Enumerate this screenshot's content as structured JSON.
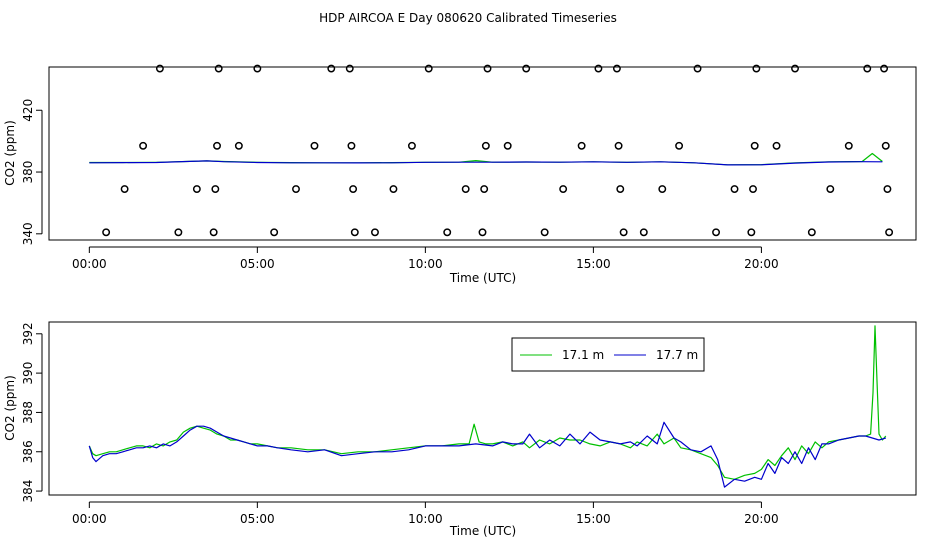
{
  "title": "HDP AIRCOA E  Day 080620  Calibrated Timeseries",
  "colors": {
    "series_17_1": "#00c000",
    "series_17_7": "#0000cc",
    "axis": "#000000",
    "background": "#ffffff"
  },
  "chart_data": [
    {
      "type": "scatter+line",
      "name": "top-panel",
      "xlabel": "Time (UTC)",
      "ylabel": "CO2 (ppm)",
      "xlim": [
        -1.2,
        24.6
      ],
      "ylim": [
        336,
        448
      ],
      "x_ticks": [
        {
          "v": 0,
          "label": "00:00"
        },
        {
          "v": 5,
          "label": "05:00"
        },
        {
          "v": 10,
          "label": "10:00"
        },
        {
          "v": 15,
          "label": "15:00"
        },
        {
          "v": 20,
          "label": "20:00"
        }
      ],
      "y_ticks": [
        {
          "v": 340,
          "label": "340"
        },
        {
          "v": 380,
          "label": "380"
        },
        {
          "v": 420,
          "label": "420"
        }
      ],
      "calibration_points": [
        {
          "x": 0.5,
          "y": 341
        },
        {
          "x": 1.05,
          "y": 369
        },
        {
          "x": 1.6,
          "y": 397
        },
        {
          "x": 2.1,
          "y": 447
        },
        {
          "x": 2.65,
          "y": 341
        },
        {
          "x": 3.2,
          "y": 369
        },
        {
          "x": 3.7,
          "y": 341
        },
        {
          "x": 3.75,
          "y": 369
        },
        {
          "x": 3.8,
          "y": 397
        },
        {
          "x": 3.85,
          "y": 447
        },
        {
          "x": 4.45,
          "y": 397
        },
        {
          "x": 5.0,
          "y": 447
        },
        {
          "x": 5.5,
          "y": 341
        },
        {
          "x": 6.15,
          "y": 369
        },
        {
          "x": 6.7,
          "y": 397
        },
        {
          "x": 7.2,
          "y": 447
        },
        {
          "x": 7.75,
          "y": 447
        },
        {
          "x": 7.8,
          "y": 397
        },
        {
          "x": 7.85,
          "y": 369
        },
        {
          "x": 7.9,
          "y": 341
        },
        {
          "x": 8.5,
          "y": 341
        },
        {
          "x": 9.05,
          "y": 369
        },
        {
          "x": 9.6,
          "y": 397
        },
        {
          "x": 10.1,
          "y": 447
        },
        {
          "x": 10.65,
          "y": 341
        },
        {
          "x": 11.2,
          "y": 369
        },
        {
          "x": 11.7,
          "y": 341
        },
        {
          "x": 11.75,
          "y": 369
        },
        {
          "x": 11.8,
          "y": 397
        },
        {
          "x": 11.85,
          "y": 447
        },
        {
          "x": 12.45,
          "y": 397
        },
        {
          "x": 13.0,
          "y": 447
        },
        {
          "x": 13.55,
          "y": 341
        },
        {
          "x": 14.1,
          "y": 369
        },
        {
          "x": 14.65,
          "y": 397
        },
        {
          "x": 15.15,
          "y": 447
        },
        {
          "x": 15.7,
          "y": 447
        },
        {
          "x": 15.75,
          "y": 397
        },
        {
          "x": 15.8,
          "y": 369
        },
        {
          "x": 15.9,
          "y": 341
        },
        {
          "x": 16.5,
          "y": 341
        },
        {
          "x": 17.05,
          "y": 369
        },
        {
          "x": 17.55,
          "y": 397
        },
        {
          "x": 18.1,
          "y": 447
        },
        {
          "x": 18.65,
          "y": 341
        },
        {
          "x": 19.2,
          "y": 369
        },
        {
          "x": 19.7,
          "y": 341
        },
        {
          "x": 19.75,
          "y": 369
        },
        {
          "x": 19.8,
          "y": 397
        },
        {
          "x": 19.85,
          "y": 447
        },
        {
          "x": 20.45,
          "y": 397
        },
        {
          "x": 21.0,
          "y": 447
        },
        {
          "x": 21.5,
          "y": 341
        },
        {
          "x": 22.05,
          "y": 369
        },
        {
          "x": 22.6,
          "y": 397
        },
        {
          "x": 23.15,
          "y": 447
        },
        {
          "x": 23.65,
          "y": 447
        },
        {
          "x": 23.7,
          "y": 397
        },
        {
          "x": 23.75,
          "y": 369
        },
        {
          "x": 23.8,
          "y": 341
        }
      ],
      "series": [
        {
          "name": "17.1 m",
          "color": "#00c000",
          "x": [
            0,
            1,
            2,
            3,
            3.5,
            4,
            5,
            6,
            7,
            8,
            9,
            10,
            11,
            11.5,
            12,
            13,
            14,
            15,
            16,
            17,
            18,
            19,
            20,
            21,
            22,
            23,
            23.3,
            23.6
          ],
          "y": [
            386.2,
            386.2,
            386.3,
            386.9,
            387.2,
            386.8,
            386.3,
            386.1,
            386.0,
            386.0,
            386.1,
            386.3,
            386.4,
            387.4,
            386.4,
            386.5,
            386.4,
            386.6,
            386.3,
            386.6,
            386.0,
            384.7,
            384.8,
            386.0,
            386.6,
            386.8,
            392,
            386.8
          ]
        },
        {
          "name": "17.7 m",
          "color": "#0000cc",
          "x": [
            0,
            1,
            2,
            3,
            3.5,
            4,
            5,
            6,
            7,
            8,
            9,
            10,
            11,
            12,
            13,
            14,
            15,
            16,
            17,
            18,
            19,
            20,
            21,
            22,
            23,
            23.6
          ],
          "y": [
            386.0,
            386.1,
            386.2,
            386.9,
            387.2,
            386.7,
            386.2,
            386.0,
            386.0,
            385.9,
            386.0,
            386.3,
            386.4,
            386.4,
            386.5,
            386.4,
            386.6,
            386.3,
            386.6,
            386.0,
            384.6,
            384.7,
            385.8,
            386.5,
            386.7,
            386.6
          ]
        }
      ]
    },
    {
      "type": "line",
      "name": "bottom-panel",
      "xlabel": "Time (UTC)",
      "ylabel": "CO2 (ppm)",
      "xlim": [
        -1.2,
        24.6
      ],
      "ylim": [
        383.8,
        392.6
      ],
      "x_ticks": [
        {
          "v": 0,
          "label": "00:00"
        },
        {
          "v": 5,
          "label": "05:00"
        },
        {
          "v": 10,
          "label": "10:00"
        },
        {
          "v": 15,
          "label": "15:00"
        },
        {
          "v": 20,
          "label": "20:00"
        }
      ],
      "y_ticks": [
        {
          "v": 384,
          "label": "384"
        },
        {
          "v": 386,
          "label": "386"
        },
        {
          "v": 388,
          "label": "388"
        },
        {
          "v": 390,
          "label": "390"
        },
        {
          "v": 392,
          "label": "392"
        }
      ],
      "legend": {
        "position": "top-right",
        "entries": [
          {
            "label": "17.1 m",
            "color": "#00c000"
          },
          {
            "label": "17.7 m",
            "color": "#0000cc"
          }
        ]
      },
      "series": [
        {
          "name": "17.1 m",
          "color": "#00c000",
          "x": [
            0,
            0.1,
            0.2,
            0.4,
            0.6,
            0.8,
            1.0,
            1.2,
            1.4,
            1.6,
            1.8,
            2.0,
            2.2,
            2.4,
            2.6,
            2.8,
            3.0,
            3.2,
            3.4,
            3.6,
            3.8,
            4.0,
            4.2,
            4.4,
            4.6,
            4.8,
            5.0,
            5.3,
            5.6,
            6.0,
            6.5,
            7.0,
            7.5,
            8.0,
            8.5,
            9.0,
            9.5,
            10.0,
            10.5,
            11.0,
            11.3,
            11.45,
            11.6,
            11.8,
            12.0,
            12.3,
            12.6,
            12.9,
            13.1,
            13.4,
            13.7,
            14.0,
            14.3,
            14.6,
            14.9,
            15.2,
            15.5,
            15.8,
            16.1,
            16.3,
            16.6,
            16.9,
            17.1,
            17.4,
            17.6,
            17.9,
            18.2,
            18.5,
            18.7,
            18.9,
            19.2,
            19.5,
            19.8,
            20.0,
            20.2,
            20.4,
            20.6,
            20.8,
            21.0,
            21.2,
            21.4,
            21.6,
            21.8,
            22.0,
            22.3,
            22.6,
            22.9,
            23.1,
            23.25,
            23.32,
            23.38,
            23.44,
            23.5,
            23.6,
            23.7
          ],
          "y": [
            386.3,
            385.9,
            385.8,
            385.9,
            386.0,
            386.0,
            386.1,
            386.2,
            386.3,
            386.3,
            386.2,
            386.4,
            386.3,
            386.5,
            386.6,
            387.0,
            387.2,
            387.3,
            387.2,
            387.1,
            386.9,
            386.8,
            386.6,
            386.6,
            386.5,
            386.4,
            386.4,
            386.3,
            386.2,
            386.2,
            386.1,
            386.1,
            385.9,
            386.0,
            386.0,
            386.1,
            386.2,
            386.3,
            386.3,
            386.4,
            386.4,
            387.4,
            386.5,
            386.4,
            386.4,
            386.5,
            386.3,
            386.5,
            386.2,
            386.6,
            386.4,
            386.7,
            386.6,
            386.6,
            386.4,
            386.3,
            386.5,
            386.4,
            386.2,
            386.5,
            386.3,
            386.9,
            386.4,
            386.7,
            386.2,
            386.1,
            385.9,
            385.7,
            385.3,
            384.7,
            384.6,
            384.8,
            384.9,
            385.1,
            385.6,
            385.3,
            385.8,
            386.2,
            385.6,
            386.3,
            385.9,
            386.5,
            386.2,
            386.5,
            386.6,
            386.7,
            386.8,
            386.8,
            386.9,
            389.0,
            392.4,
            389.6,
            386.9,
            386.6,
            386.8
          ]
        },
        {
          "name": "17.7 m",
          "color": "#0000cc",
          "x": [
            0,
            0.1,
            0.2,
            0.4,
            0.6,
            0.8,
            1.0,
            1.2,
            1.4,
            1.6,
            1.8,
            2.0,
            2.2,
            2.4,
            2.6,
            2.8,
            3.0,
            3.2,
            3.4,
            3.6,
            3.8,
            4.0,
            4.2,
            4.4,
            4.6,
            4.8,
            5.0,
            5.3,
            5.6,
            6.0,
            6.5,
            7.0,
            7.5,
            8.0,
            8.5,
            9.0,
            9.5,
            10.0,
            10.5,
            11.0,
            11.5,
            12.0,
            12.3,
            12.6,
            12.9,
            13.1,
            13.4,
            13.7,
            14.0,
            14.3,
            14.6,
            14.9,
            15.2,
            15.5,
            15.8,
            16.1,
            16.3,
            16.6,
            16.9,
            17.1,
            17.4,
            17.6,
            17.9,
            18.2,
            18.5,
            18.7,
            18.9,
            19.2,
            19.5,
            19.8,
            20.0,
            20.2,
            20.4,
            20.6,
            20.8,
            21.0,
            21.2,
            21.4,
            21.6,
            21.8,
            22.0,
            22.3,
            22.6,
            22.9,
            23.1,
            23.3,
            23.5,
            23.7
          ],
          "y": [
            386.3,
            385.7,
            385.5,
            385.8,
            385.9,
            385.9,
            386.0,
            386.1,
            386.2,
            386.2,
            386.3,
            386.2,
            386.4,
            386.3,
            386.5,
            386.8,
            387.1,
            387.3,
            387.3,
            387.2,
            387.0,
            386.8,
            386.7,
            386.6,
            386.5,
            386.4,
            386.3,
            386.3,
            386.2,
            386.1,
            386.0,
            386.1,
            385.8,
            385.9,
            386.0,
            386.0,
            386.1,
            386.3,
            386.3,
            386.3,
            386.4,
            386.3,
            386.5,
            386.4,
            386.4,
            386.9,
            386.2,
            386.6,
            386.3,
            386.9,
            386.4,
            387.0,
            386.6,
            386.5,
            386.4,
            386.5,
            386.3,
            386.8,
            386.4,
            387.5,
            386.7,
            386.5,
            386.1,
            386.0,
            386.3,
            385.6,
            384.2,
            384.6,
            384.5,
            384.7,
            384.6,
            385.4,
            384.9,
            385.7,
            385.4,
            386.0,
            385.4,
            386.2,
            385.6,
            386.4,
            386.4,
            386.6,
            386.7,
            386.8,
            386.8,
            386.7,
            386.6,
            386.7
          ]
        }
      ]
    }
  ]
}
